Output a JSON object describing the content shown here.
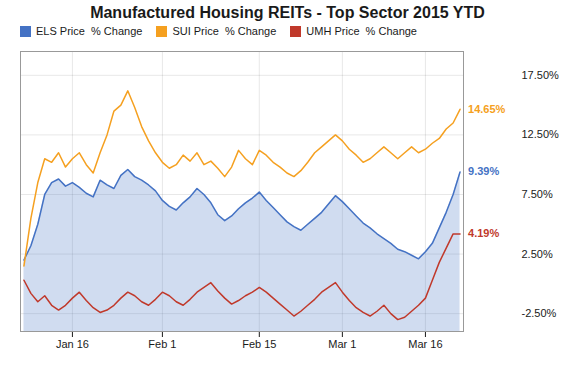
{
  "chart_data": {
    "type": "line",
    "title": "Manufactured Housing REITs - Top Sector 2015 YTD",
    "categories": [
      null,
      null,
      null,
      null,
      null,
      null,
      null,
      "Jan 16",
      null,
      null,
      null,
      null,
      null,
      null,
      null,
      null,
      null,
      null,
      null,
      null,
      "Feb 1",
      null,
      null,
      null,
      null,
      null,
      null,
      null,
      null,
      null,
      null,
      null,
      null,
      null,
      "Feb 15",
      null,
      null,
      null,
      null,
      null,
      null,
      null,
      null,
      null,
      null,
      null,
      "Mar 1",
      null,
      null,
      null,
      null,
      null,
      null,
      null,
      null,
      null,
      null,
      null,
      "Mar 16",
      null,
      null,
      null,
      null,
      null
    ],
    "series": [
      {
        "name": "ELS Price  % Change",
        "color": "#4472c4",
        "type": "area",
        "values": [
          2.0,
          3.2,
          5.0,
          7.5,
          8.5,
          8.8,
          8.2,
          8.5,
          8.1,
          7.6,
          7.3,
          8.7,
          8.3,
          8.0,
          9.1,
          9.6,
          9.0,
          8.7,
          8.3,
          7.8,
          7.0,
          6.5,
          6.2,
          6.8,
          7.3,
          8.0,
          7.5,
          6.8,
          5.8,
          5.3,
          5.7,
          6.3,
          6.8,
          7.2,
          7.7,
          7.0,
          6.4,
          5.8,
          5.2,
          4.8,
          4.5,
          5.0,
          5.5,
          6.0,
          6.7,
          7.4,
          6.9,
          6.3,
          5.7,
          5.1,
          4.7,
          4.2,
          3.8,
          3.4,
          2.9,
          2.7,
          2.4,
          2.1,
          2.7,
          3.4,
          4.7,
          6.0,
          7.5,
          9.39
        ]
      },
      {
        "name": "SUI Price  % Change",
        "color": "#f5a020",
        "type": "line",
        "values": [
          1.5,
          5.5,
          8.5,
          10.5,
          10.2,
          11.0,
          9.8,
          10.5,
          11.0,
          10.0,
          9.3,
          11.0,
          12.5,
          14.5,
          15.0,
          16.2,
          14.8,
          13.2,
          12.0,
          11.0,
          10.2,
          9.7,
          10.0,
          10.8,
          10.3,
          11.0,
          10.0,
          10.3,
          9.7,
          9.0,
          9.8,
          11.2,
          10.5,
          10.0,
          11.2,
          10.8,
          10.2,
          9.8,
          9.3,
          9.0,
          9.5,
          10.2,
          11.0,
          11.5,
          12.0,
          12.5,
          12.0,
          11.3,
          10.8,
          10.2,
          10.5,
          11.0,
          11.5,
          11.0,
          10.5,
          11.0,
          11.5,
          11.0,
          11.3,
          11.8,
          12.2,
          13.0,
          13.5,
          14.65
        ]
      },
      {
        "name": "UMH Price  % Change",
        "color": "#c0392b",
        "type": "line",
        "values": [
          0.3,
          -0.8,
          -1.5,
          -1.0,
          -1.8,
          -2.2,
          -1.8,
          -1.2,
          -0.7,
          -1.4,
          -2.0,
          -2.4,
          -2.2,
          -1.8,
          -1.2,
          -0.7,
          -1.0,
          -1.5,
          -1.8,
          -1.3,
          -0.7,
          -1.0,
          -1.5,
          -1.8,
          -1.3,
          -0.7,
          -0.3,
          0.1,
          -0.6,
          -1.2,
          -1.7,
          -1.4,
          -1.0,
          -0.7,
          -0.3,
          -0.7,
          -1.2,
          -1.7,
          -2.2,
          -2.7,
          -2.3,
          -1.8,
          -1.3,
          -0.7,
          -0.3,
          0.1,
          -0.7,
          -1.4,
          -2.0,
          -2.4,
          -2.7,
          -2.3,
          -1.8,
          -2.5,
          -3.0,
          -2.8,
          -2.3,
          -1.8,
          -1.2,
          0.3,
          1.8,
          3.0,
          4.19,
          4.19
        ]
      }
    ],
    "ylim": [
      -4.0,
      19.5
    ],
    "yticks": [
      {
        "value": -2.5,
        "label": "-2.50%"
      },
      {
        "value": 2.5,
        "label": "2.50%"
      },
      {
        "value": 7.5,
        "label": "7.50%"
      },
      {
        "value": 12.5,
        "label": "12.50%"
      },
      {
        "value": 17.5,
        "label": "17.50%"
      }
    ],
    "grid": true,
    "legend": "top-left",
    "annotations": [
      {
        "text": "14.65%",
        "value": 14.65,
        "color": "#f5a020"
      },
      {
        "text": "9.39%",
        "value": 9.39,
        "color": "#4472c4"
      },
      {
        "text": "4.19%",
        "value": 4.19,
        "color": "#c0392b"
      }
    ]
  }
}
